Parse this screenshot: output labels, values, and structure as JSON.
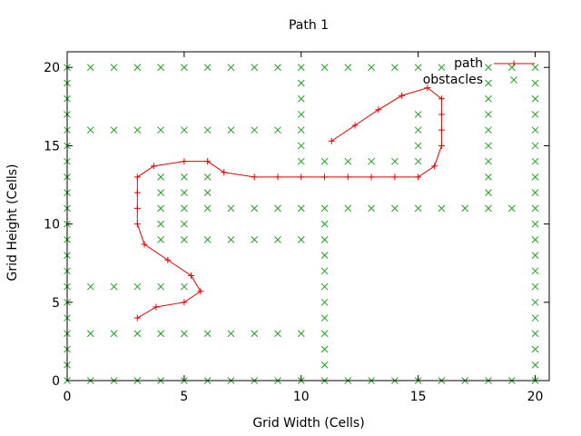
{
  "chart_data": {
    "type": "scatter",
    "title": "Path 1",
    "xlabel": "Grid Width (Cells)",
    "ylabel": "Grid Height (Cells)",
    "xlim": [
      0,
      20.6
    ],
    "ylim": [
      0,
      21
    ],
    "xticks": [
      0,
      5,
      10,
      15,
      20
    ],
    "yticks": [
      0,
      5,
      10,
      15,
      20
    ],
    "legend_position": "top-right",
    "series": [
      {
        "name": "path",
        "style": "line-with-plus-markers",
        "color": "#e00000",
        "points": [
          [
            3,
            4
          ],
          [
            3.8,
            4.7
          ],
          [
            5,
            5
          ],
          [
            5.7,
            5.7
          ],
          [
            5.3,
            6.7
          ],
          [
            4.3,
            7.7
          ],
          [
            3.3,
            8.7
          ],
          [
            3,
            10
          ],
          [
            3,
            11
          ],
          [
            3,
            12
          ],
          [
            3,
            13
          ],
          [
            3.7,
            13.7
          ],
          [
            5,
            14
          ],
          [
            6,
            14
          ],
          [
            6.7,
            13.3
          ],
          [
            8,
            13
          ],
          [
            9,
            13
          ],
          [
            10,
            13
          ],
          [
            11,
            13
          ],
          [
            12,
            13
          ],
          [
            13,
            13
          ],
          [
            14,
            13
          ],
          [
            15,
            13
          ],
          [
            15.7,
            13.7
          ],
          [
            16,
            15
          ],
          [
            16,
            16
          ],
          [
            16,
            17
          ],
          [
            16,
            18
          ],
          [
            15.4,
            18.7
          ],
          [
            14.3,
            18.2
          ],
          [
            13.3,
            17.3
          ],
          [
            12.3,
            16.3
          ],
          [
            11.3,
            15.3
          ]
        ]
      },
      {
        "name": "obstacles",
        "style": "x-markers",
        "color": "#22a022",
        "points": [
          [
            0,
            0
          ],
          [
            1,
            0
          ],
          [
            2,
            0
          ],
          [
            3,
            0
          ],
          [
            4,
            0
          ],
          [
            5,
            0
          ],
          [
            6,
            0
          ],
          [
            7,
            0
          ],
          [
            8,
            0
          ],
          [
            9,
            0
          ],
          [
            10,
            0
          ],
          [
            11,
            0
          ],
          [
            12,
            0
          ],
          [
            13,
            0
          ],
          [
            14,
            0
          ],
          [
            15,
            0
          ],
          [
            16,
            0
          ],
          [
            17,
            0
          ],
          [
            18,
            0
          ],
          [
            19,
            0
          ],
          [
            20,
            0
          ],
          [
            0,
            20
          ],
          [
            1,
            20
          ],
          [
            2,
            20
          ],
          [
            3,
            20
          ],
          [
            4,
            20
          ],
          [
            5,
            20
          ],
          [
            6,
            20
          ],
          [
            7,
            20
          ],
          [
            8,
            20
          ],
          [
            9,
            20
          ],
          [
            10,
            20
          ],
          [
            11,
            20
          ],
          [
            12,
            20
          ],
          [
            13,
            20
          ],
          [
            14,
            20
          ],
          [
            15,
            20
          ],
          [
            16,
            20
          ],
          [
            18,
            20
          ],
          [
            19,
            20
          ],
          [
            20,
            20
          ],
          [
            0,
            1
          ],
          [
            0,
            2
          ],
          [
            0,
            3
          ],
          [
            0,
            4
          ],
          [
            0,
            5
          ],
          [
            0,
            6
          ],
          [
            0,
            7
          ],
          [
            0,
            8
          ],
          [
            0,
            9
          ],
          [
            0,
            10
          ],
          [
            0,
            11
          ],
          [
            0,
            12
          ],
          [
            0,
            13
          ],
          [
            0,
            14
          ],
          [
            0,
            15
          ],
          [
            0,
            16
          ],
          [
            0,
            17
          ],
          [
            0,
            18
          ],
          [
            0,
            19
          ],
          [
            20,
            1
          ],
          [
            20,
            2
          ],
          [
            20,
            3
          ],
          [
            20,
            4
          ],
          [
            20,
            5
          ],
          [
            20,
            6
          ],
          [
            20,
            7
          ],
          [
            20,
            8
          ],
          [
            20,
            9
          ],
          [
            20,
            10
          ],
          [
            20,
            11
          ],
          [
            20,
            12
          ],
          [
            20,
            13
          ],
          [
            20,
            14
          ],
          [
            20,
            15
          ],
          [
            20,
            16
          ],
          [
            20,
            17
          ],
          [
            20,
            18
          ],
          [
            20,
            19
          ],
          [
            1,
            16
          ],
          [
            2,
            16
          ],
          [
            3,
            16
          ],
          [
            4,
            16
          ],
          [
            5,
            16
          ],
          [
            6,
            16
          ],
          [
            7,
            16
          ],
          [
            8,
            16
          ],
          [
            9,
            16
          ],
          [
            10,
            14
          ],
          [
            10,
            15
          ],
          [
            10,
            16
          ],
          [
            10,
            17
          ],
          [
            10,
            18
          ],
          [
            10,
            19
          ],
          [
            11,
            14
          ],
          [
            12,
            14
          ],
          [
            13,
            14
          ],
          [
            14,
            14
          ],
          [
            15,
            14
          ],
          [
            15,
            15
          ],
          [
            15,
            16
          ],
          [
            15,
            17
          ],
          [
            18,
            12
          ],
          [
            18,
            13
          ],
          [
            18,
            14
          ],
          [
            18,
            15
          ],
          [
            18,
            16
          ],
          [
            18,
            17
          ],
          [
            18,
            18
          ],
          [
            18,
            19
          ],
          [
            4,
            9
          ],
          [
            5,
            9
          ],
          [
            6,
            9
          ],
          [
            7,
            9
          ],
          [
            8,
            9
          ],
          [
            9,
            9
          ],
          [
            10,
            9
          ],
          [
            4,
            10
          ],
          [
            5,
            10
          ],
          [
            4,
            11
          ],
          [
            5,
            11
          ],
          [
            6,
            11
          ],
          [
            7,
            11
          ],
          [
            8,
            11
          ],
          [
            9,
            11
          ],
          [
            10,
            11
          ],
          [
            11,
            11
          ],
          [
            12,
            11
          ],
          [
            13,
            11
          ],
          [
            14,
            11
          ],
          [
            15,
            11
          ],
          [
            16,
            11
          ],
          [
            17,
            11
          ],
          [
            18,
            11
          ],
          [
            19,
            11
          ],
          [
            4,
            12
          ],
          [
            5,
            12
          ],
          [
            6,
            12
          ],
          [
            4,
            13
          ],
          [
            5,
            13
          ],
          [
            6,
            13
          ],
          [
            11,
            1
          ],
          [
            11,
            2
          ],
          [
            11,
            3
          ],
          [
            11,
            4
          ],
          [
            11,
            5
          ],
          [
            11,
            6
          ],
          [
            11,
            7
          ],
          [
            11,
            8
          ],
          [
            11,
            9
          ],
          [
            11,
            10
          ],
          [
            1,
            6
          ],
          [
            2,
            6
          ],
          [
            3,
            6
          ],
          [
            4,
            6
          ],
          [
            5,
            6
          ],
          [
            1,
            3
          ],
          [
            2,
            3
          ],
          [
            3,
            3
          ],
          [
            4,
            3
          ],
          [
            5,
            3
          ],
          [
            6,
            3
          ],
          [
            7,
            3
          ],
          [
            8,
            3
          ],
          [
            9,
            3
          ],
          [
            10,
            3
          ]
        ]
      }
    ]
  }
}
